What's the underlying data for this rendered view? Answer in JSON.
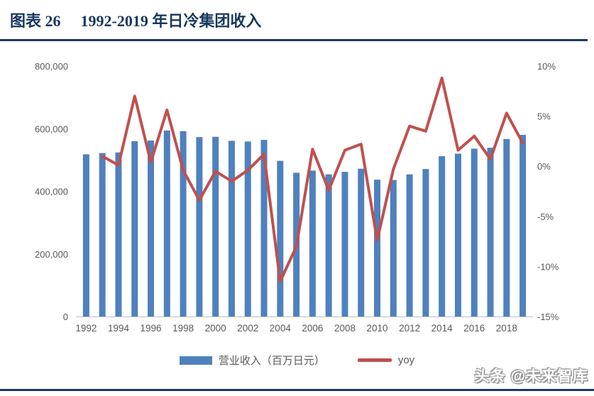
{
  "figure": {
    "title_prefix": "图表 26",
    "title_text": "1992-2019 年日冷集团收入",
    "title_color": "#17375E",
    "watermark": "头条 @未来智库"
  },
  "chart_data": {
    "type": "bar+line combo",
    "title": "1992-2019 年日冷集团收入",
    "categories": [
      1992,
      1993,
      1994,
      1995,
      1996,
      1997,
      1998,
      1999,
      2000,
      2001,
      2002,
      2003,
      2004,
      2005,
      2006,
      2007,
      2008,
      2009,
      2010,
      2011,
      2012,
      2013,
      2014,
      2015,
      2016,
      2017,
      2018,
      2019
    ],
    "series": [
      {
        "name": "营业收入（百万日元）",
        "type": "bar",
        "axis": "left",
        "color": "#4F81BD",
        "values": [
          518000,
          522000,
          524000,
          560000,
          562000,
          594000,
          592000,
          573000,
          574000,
          561000,
          559000,
          564000,
          497000,
          459000,
          466000,
          454000,
          462000,
          472000,
          437000,
          436000,
          454000,
          471000,
          512000,
          520000,
          536000,
          539000,
          567000,
          580000
        ]
      },
      {
        "name": "yoy",
        "type": "line",
        "axis": "right",
        "color": "#C0504D",
        "values": [
          null,
          1.0,
          0.1,
          7.0,
          0.4,
          5.6,
          -0.4,
          -3.4,
          -0.5,
          -1.5,
          -0.4,
          1.2,
          -11.5,
          -8.0,
          1.7,
          -2.4,
          1.6,
          2.2,
          -7.4,
          -0.3,
          4.0,
          3.5,
          8.8,
          1.6,
          3.0,
          0.7,
          5.3,
          2.3
        ]
      }
    ],
    "left_axis": {
      "max": 800000,
      "min": 0,
      "tick_values": [
        800000,
        600000,
        400000,
        200000,
        0
      ],
      "tick_labels": [
        "800,000",
        "600,000",
        "400,000",
        "200,000",
        "0"
      ]
    },
    "right_axis": {
      "max_pct": 10,
      "min_pct": -15,
      "tick_values": [
        10,
        5,
        0,
        -5,
        -10,
        -15
      ],
      "tick_labels": [
        "10%",
        "5%",
        "0%",
        "-5%",
        "-10%",
        "-15%"
      ]
    },
    "x_tick_labels": [
      "1992",
      "1994",
      "1996",
      "1998",
      "2000",
      "2002",
      "2004",
      "2006",
      "2008",
      "2010",
      "2012",
      "2014",
      "2016",
      "2018"
    ],
    "grid": "off",
    "legend_position": "bottom",
    "tick_color": "#595959",
    "axis_line_color": "#BFBFBF"
  }
}
